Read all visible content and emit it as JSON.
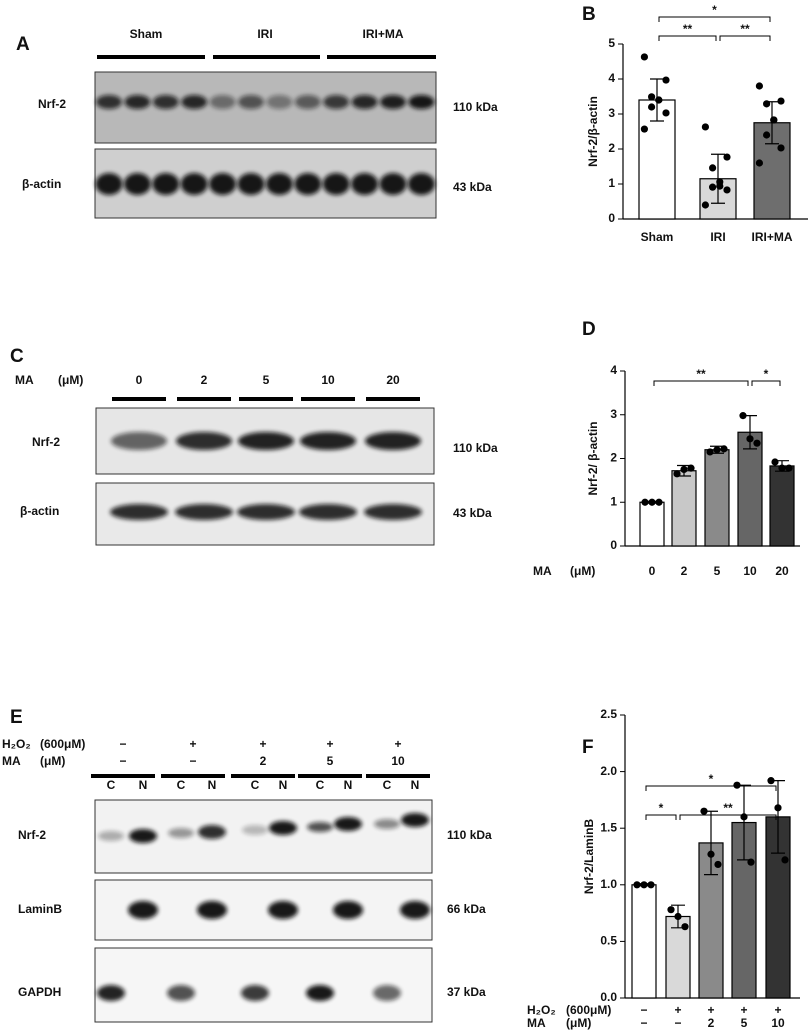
{
  "chart_data": [
    {
      "type": "bar",
      "panel": "B",
      "ylabel": "Nrf-2/β-actin",
      "categories": [
        "Sham",
        "IRI",
        "IRI+MA"
      ],
      "values": [
        3.4,
        1.15,
        2.75
      ],
      "errors": [
        0.6,
        0.7,
        0.6
      ],
      "colors": [
        "#ffffff",
        "#d9d9d9",
        "#6e6e6e"
      ],
      "points": [
        [
          4.63,
          3.97,
          3.49,
          3.4,
          3.4,
          3.2,
          3.03,
          2.57
        ],
        [
          2.63,
          1.77,
          1.46,
          1.06,
          0.94,
          0.91,
          0.83,
          0.4
        ],
        [
          3.8,
          3.37,
          3.29,
          2.83,
          2.83,
          2.4,
          2.03,
          1.6
        ]
      ],
      "ylim": [
        0,
        5
      ],
      "yticks": [
        0,
        1,
        2,
        3,
        4,
        5
      ],
      "significance": [
        {
          "label": "*",
          "between": [
            "Sham",
            "IRI+MA"
          ]
        },
        {
          "label": "**",
          "between": [
            "Sham",
            "IRI"
          ]
        },
        {
          "label": "**",
          "between": [
            "IRI",
            "IRI+MA"
          ]
        }
      ]
    },
    {
      "type": "bar",
      "panel": "D",
      "ylabel": "Nrf-2/ β-actin",
      "xlabel": "MA",
      "xunit": "(μM)",
      "categories": [
        "0",
        "2",
        "5",
        "10",
        "20"
      ],
      "values": [
        1.0,
        1.72,
        2.2,
        2.6,
        1.83
      ],
      "errors": [
        0.02,
        0.12,
        0.08,
        0.38,
        0.12
      ],
      "colors": [
        "#ffffff",
        "#c8c8c8",
        "#8a8a8a",
        "#666666",
        "#333333"
      ],
      "points": [
        [
          1,
          1,
          1
        ],
        [
          1.65,
          1.75,
          1.78
        ],
        [
          2.15,
          2.2,
          2.22
        ],
        [
          2.98,
          2.45,
          2.35
        ],
        [
          1.92,
          1.78,
          1.78
        ]
      ],
      "ylim": [
        0,
        4
      ],
      "yticks": [
        0,
        1,
        2,
        3,
        4
      ],
      "significance": [
        {
          "label": "**",
          "between": [
            "0",
            "10"
          ]
        },
        {
          "label": "*",
          "between": [
            "10",
            "20"
          ]
        }
      ]
    },
    {
      "type": "bar",
      "panel": "F",
      "ylabel": "Nrf-2/LaminB",
      "category_rows": [
        {
          "label": "H₂O₂",
          "unit": "(600μM)",
          "values": [
            "−",
            "+",
            "+",
            "+",
            "+"
          ]
        },
        {
          "label": "MA",
          "unit": "(μM)",
          "values": [
            "−",
            "−",
            "2",
            "5",
            "10"
          ]
        }
      ],
      "values": [
        1.0,
        0.72,
        1.37,
        1.55,
        1.6
      ],
      "errors": [
        0.01,
        0.1,
        0.28,
        0.33,
        0.32
      ],
      "colors": [
        "#ffffff",
        "#d9d9d9",
        "#8a8a8a",
        "#666666",
        "#333333"
      ],
      "points": [
        [
          1,
          1,
          1
        ],
        [
          0.78,
          0.72,
          0.63
        ],
        [
          1.65,
          1.27,
          1.18
        ],
        [
          1.88,
          1.6,
          1.2
        ],
        [
          1.92,
          1.68,
          1.22
        ]
      ],
      "ylim": [
        0,
        2.5
      ],
      "yticks": [
        {
          "value": 0,
          "label": "0.0"
        },
        0.5,
        {
          "value": 1,
          "label": "1.0"
        },
        1.5,
        {
          "value": 2,
          "label": "2.0"
        },
        2.5
      ],
      "significance": [
        {
          "label": "*",
          "between": [
            0,
            1
          ]
        },
        {
          "label": "**",
          "between": [
            1,
            4
          ]
        },
        {
          "label": "*",
          "between": [
            0,
            4
          ]
        }
      ]
    }
  ],
  "blots": [
    {
      "panel": "A",
      "groups": [
        "Sham",
        "IRI",
        "IRI+MA"
      ],
      "rows": [
        {
          "label": "Nrf-2",
          "size": "110 kDa"
        },
        {
          "label": "β-actin",
          "size": "43 kDa"
        }
      ]
    },
    {
      "panel": "C",
      "condition": "MA",
      "unit": "(μM)",
      "lanes": [
        "0",
        "2",
        "5",
        "10",
        "20"
      ],
      "rows": [
        {
          "label": "Nrf-2",
          "size": "110 kDa"
        },
        {
          "label": "β-actin",
          "size": "43 kDa"
        }
      ]
    },
    {
      "panel": "E",
      "conditions": [
        {
          "label": "H₂O₂",
          "unit": "(600μM)",
          "values": [
            "−",
            "+",
            "+",
            "+",
            "+"
          ]
        },
        {
          "label": "MA",
          "unit": "(μM)",
          "values": [
            "−",
            "−",
            "2",
            "5",
            "10"
          ]
        }
      ],
      "fractions": [
        "C",
        "N"
      ],
      "rows": [
        {
          "label": "Nrf-2",
          "size": "110 kDa"
        },
        {
          "label": "LaminB",
          "size": "66 kDa"
        },
        {
          "label": "GAPDH",
          "size": "37 kDa"
        }
      ]
    }
  ]
}
